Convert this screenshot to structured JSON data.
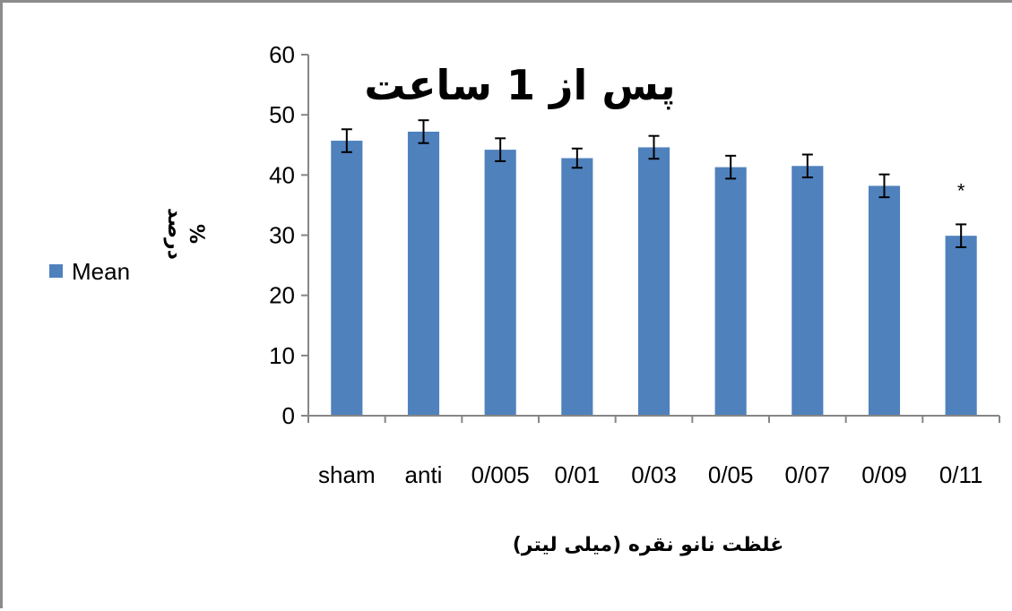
{
  "chart_data": {
    "type": "bar",
    "title": "پس از 1 ساعت",
    "xlabel": "غلظت نانو نقره (میلی لیتر)",
    "ylabel": "درصد",
    "ylabel_unit": "%",
    "categories": [
      "sham",
      "anti",
      "0/005",
      "0/01",
      "0/03",
      "0/05",
      "0/07",
      "0/09",
      "0/11"
    ],
    "series": [
      {
        "name": "Mean",
        "color": "#4f81bd",
        "values": [
          45.7,
          47.2,
          44.2,
          42.8,
          44.6,
          41.3,
          41.5,
          38.2,
          29.9
        ],
        "error": [
          1.9,
          1.9,
          1.9,
          1.6,
          1.9,
          1.9,
          1.9,
          1.9,
          1.9
        ]
      }
    ],
    "ylim": [
      0,
      60
    ],
    "yticks": [
      0,
      10,
      20,
      30,
      40,
      50,
      60
    ],
    "grid": false,
    "legend_position": "left",
    "annotations": [
      {
        "category": "0/11",
        "text": "*"
      }
    ]
  }
}
